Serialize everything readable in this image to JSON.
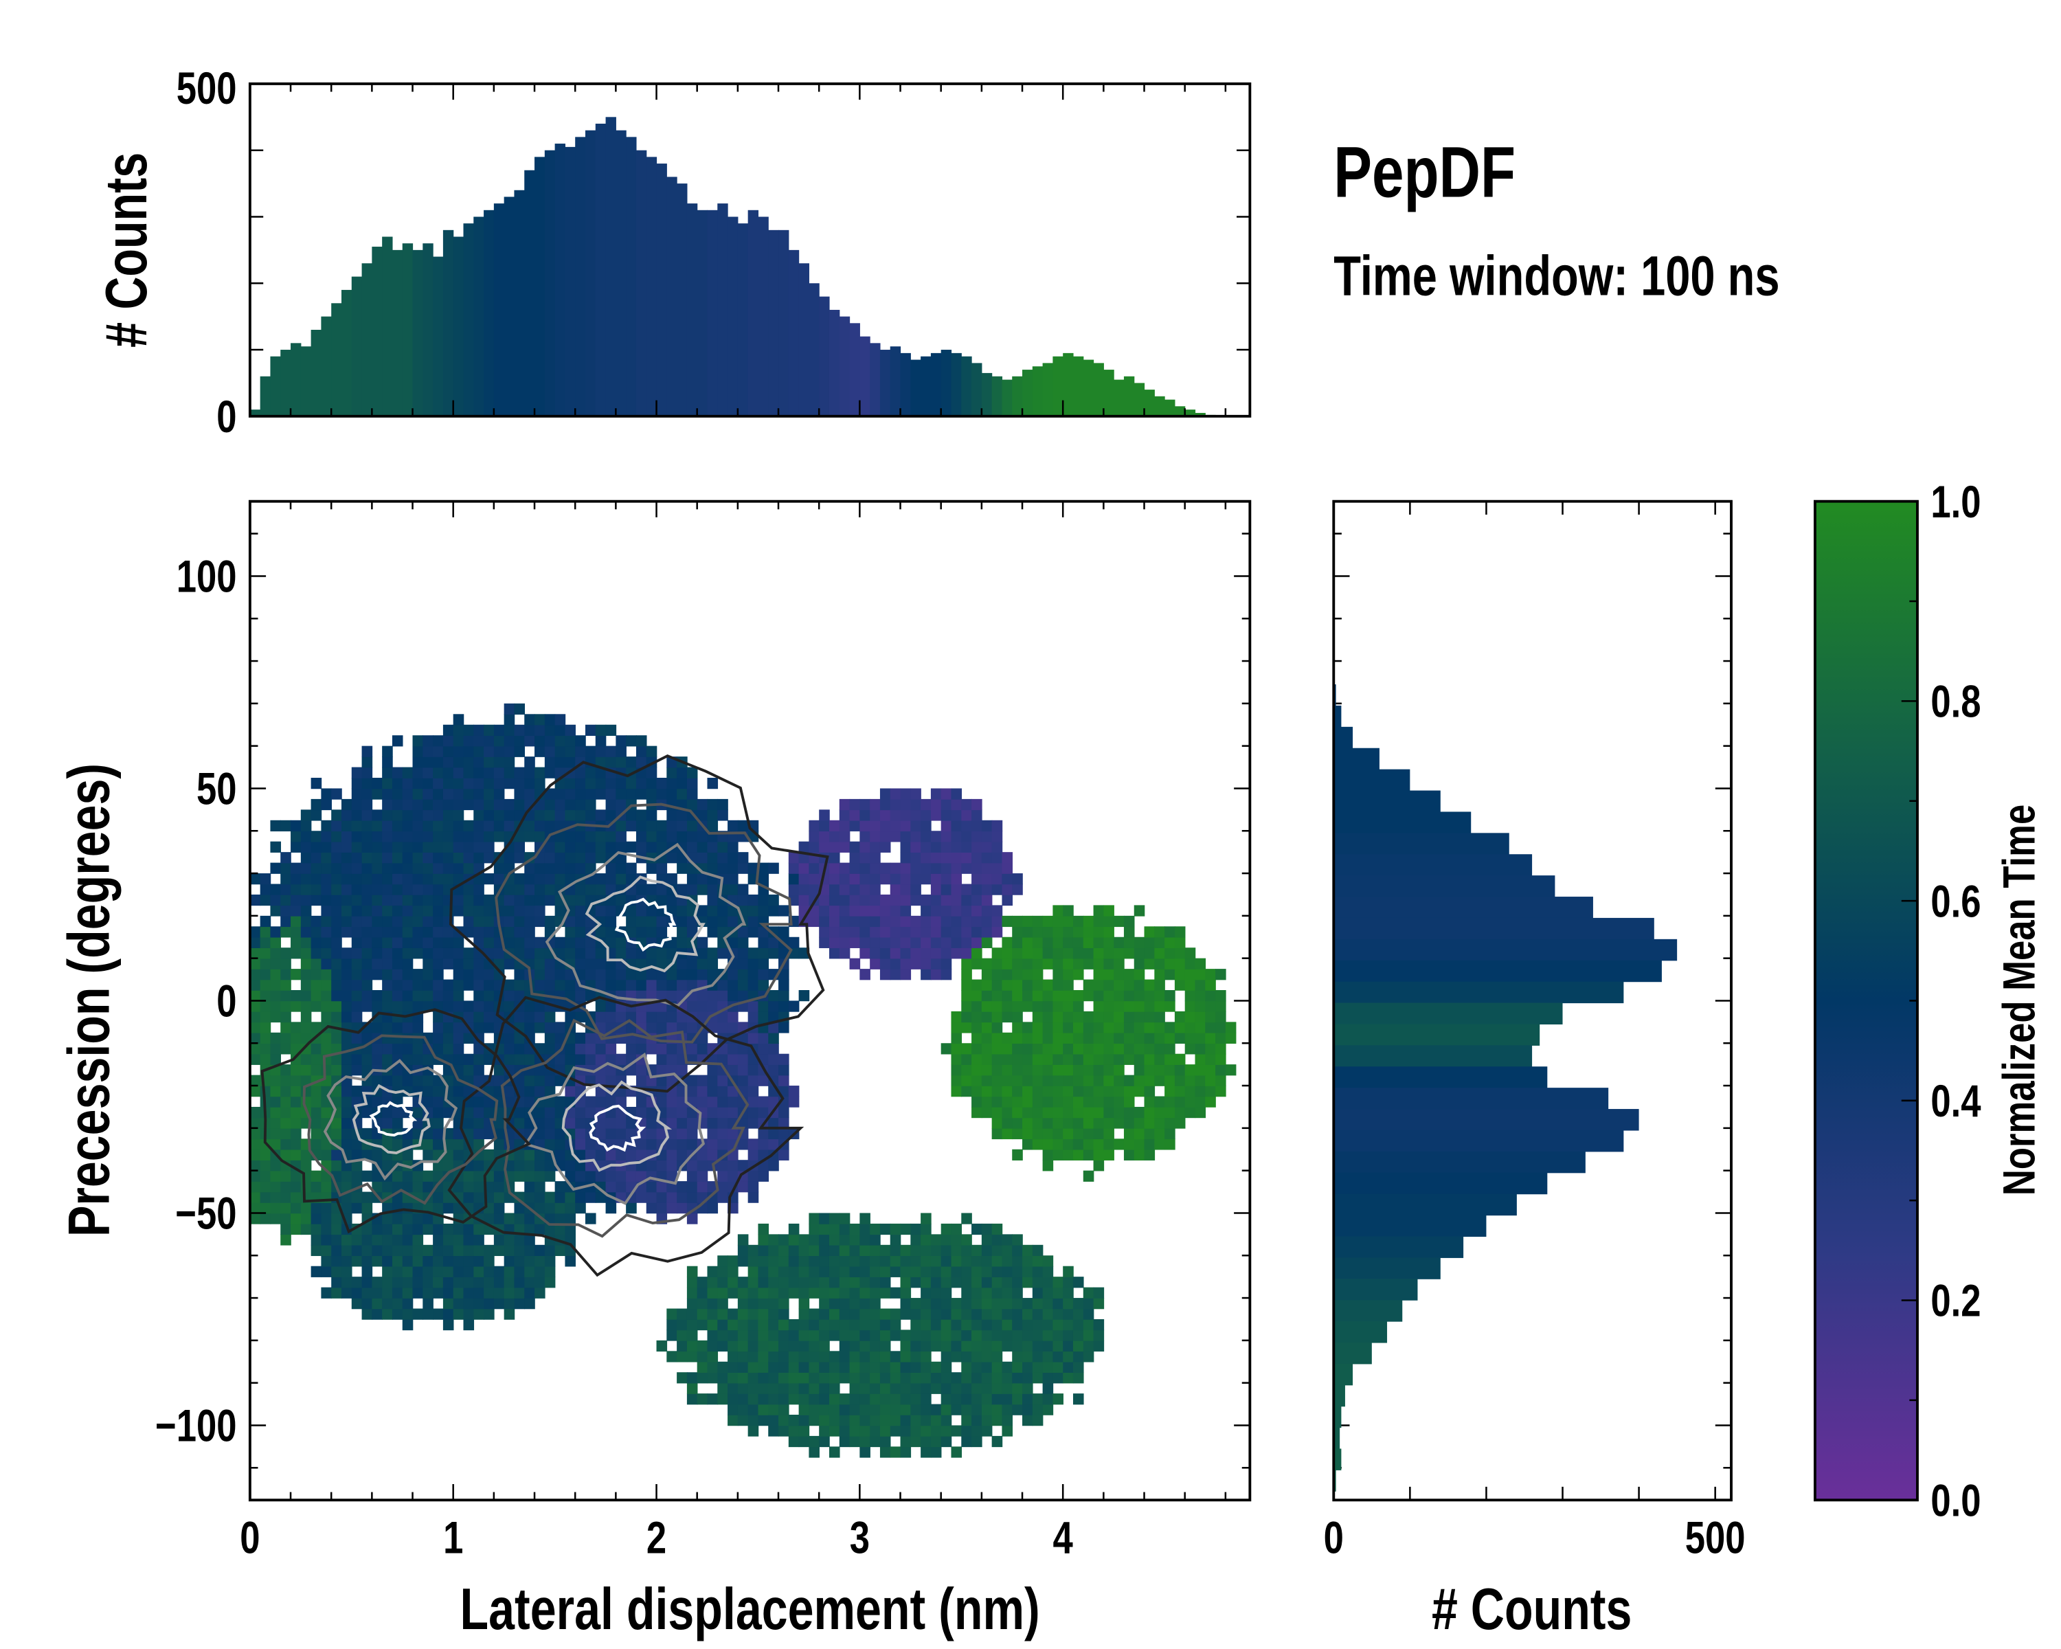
{
  "chart_data": [
    {
      "type": "bar",
      "name": "top-histogram",
      "ylabel": "# Counts",
      "xlim": [
        0,
        4.92
      ],
      "ylim": [
        0,
        500
      ],
      "yticks": [
        "0",
        "500"
      ],
      "bin_width": 0.05,
      "x": [
        0,
        0.05,
        0.1,
        0.15,
        0.2,
        0.25,
        0.3,
        0.35,
        0.4,
        0.45,
        0.5,
        0.55,
        0.6,
        0.65,
        0.7,
        0.75,
        0.8,
        0.85,
        0.9,
        0.95,
        1.0,
        1.05,
        1.1,
        1.15,
        1.2,
        1.25,
        1.3,
        1.35,
        1.4,
        1.45,
        1.5,
        1.55,
        1.6,
        1.65,
        1.7,
        1.75,
        1.8,
        1.85,
        1.9,
        1.95,
        2.0,
        2.05,
        2.1,
        2.15,
        2.2,
        2.25,
        2.3,
        2.35,
        2.4,
        2.45,
        2.5,
        2.55,
        2.6,
        2.65,
        2.7,
        2.75,
        2.8,
        2.85,
        2.9,
        2.95,
        3.0,
        3.05,
        3.1,
        3.15,
        3.2,
        3.25,
        3.3,
        3.35,
        3.4,
        3.45,
        3.5,
        3.55,
        3.6,
        3.65,
        3.7,
        3.75,
        3.8,
        3.85,
        3.9,
        3.95,
        4.0,
        4.05,
        4.1,
        4.15,
        4.2,
        4.25,
        4.3,
        4.35,
        4.4,
        4.45,
        4.5,
        4.55,
        4.6,
        4.65,
        4.7
      ],
      "values": [
        10,
        60,
        90,
        100,
        110,
        105,
        130,
        150,
        170,
        190,
        210,
        230,
        255,
        270,
        250,
        260,
        250,
        260,
        240,
        280,
        270,
        290,
        300,
        310,
        320,
        330,
        340,
        370,
        390,
        400,
        410,
        405,
        420,
        430,
        440,
        450,
        430,
        420,
        400,
        390,
        380,
        360,
        350,
        320,
        310,
        310,
        320,
        300,
        290,
        310,
        300,
        280,
        280,
        250,
        230,
        200,
        180,
        160,
        150,
        140,
        120,
        110,
        100,
        105,
        95,
        85,
        90,
        95,
        100,
        95,
        90,
        80,
        65,
        60,
        55,
        60,
        70,
        75,
        80,
        90,
        95,
        90,
        85,
        80,
        70,
        55,
        60,
        50,
        40,
        30,
        25,
        15,
        10,
        5,
        2
      ],
      "color_values": [
        0.72,
        0.72,
        0.72,
        0.72,
        0.72,
        0.72,
        0.72,
        0.72,
        0.72,
        0.72,
        0.7,
        0.7,
        0.7,
        0.7,
        0.7,
        0.7,
        0.66,
        0.64,
        0.62,
        0.6,
        0.58,
        0.56,
        0.54,
        0.52,
        0.5,
        0.5,
        0.5,
        0.5,
        0.5,
        0.48,
        0.46,
        0.45,
        0.45,
        0.44,
        0.42,
        0.42,
        0.42,
        0.42,
        0.4,
        0.4,
        0.4,
        0.4,
        0.4,
        0.4,
        0.4,
        0.38,
        0.38,
        0.38,
        0.38,
        0.36,
        0.36,
        0.36,
        0.36,
        0.35,
        0.35,
        0.35,
        0.33,
        0.3,
        0.28,
        0.26,
        0.25,
        0.3,
        0.38,
        0.42,
        0.46,
        0.5,
        0.5,
        0.5,
        0.52,
        0.56,
        0.62,
        0.66,
        0.7,
        0.78,
        0.85,
        0.9,
        0.92,
        0.94,
        0.95,
        0.96,
        0.96,
        0.96,
        0.96,
        0.96,
        0.96,
        0.96,
        0.96,
        0.96,
        0.96,
        0.96,
        0.96,
        0.96,
        0.96,
        0.96,
        0.96
      ]
    },
    {
      "type": "heatmap",
      "name": "main-2d-histogram",
      "xlabel": "Lateral displacement (nm)",
      "ylabel": "Precession (degrees)",
      "xlim": [
        0,
        4.92
      ],
      "ylim": [
        -117.6,
        117.6
      ],
      "xticks": [
        "0",
        "1",
        "2",
        "3",
        "4"
      ],
      "yticks": [
        "−100",
        "−50",
        "0",
        "50",
        "100"
      ],
      "regions": [
        {
          "cx": 4.1,
          "cy": -10,
          "rx": 0.75,
          "ry": 33,
          "t": 0.95
        },
        {
          "cx": 3.2,
          "cy": 27,
          "rx": 0.6,
          "ry": 24,
          "t": 0.22
        },
        {
          "cx": 2.1,
          "cy": -25,
          "rx": 0.6,
          "ry": 30,
          "t": 0.3
        },
        {
          "cx": 0.15,
          "cy": -20,
          "rx": 0.3,
          "ry": 40,
          "t": 0.8
        },
        {
          "cx": 3.1,
          "cy": -80,
          "rx": 1.15,
          "ry": 30,
          "t": 0.72
        },
        {
          "cx": 0.9,
          "cy": -55,
          "rx": 0.7,
          "ry": 25,
          "t": 0.62
        },
        {
          "cx": 1.3,
          "cy": 5,
          "rx": 1.45,
          "ry": 64,
          "t": 0.5
        }
      ],
      "density_peaks": [
        {
          "x": 1.95,
          "y": 18,
          "level": 1.0
        },
        {
          "x": 1.8,
          "y": -30,
          "level": 0.9
        },
        {
          "x": 0.7,
          "y": -28,
          "level": 0.7
        }
      ]
    },
    {
      "type": "bar",
      "orientation": "horizontal",
      "name": "right-histogram",
      "xlabel": "# Counts",
      "xlim": [
        0,
        521
      ],
      "xticks": [
        "0",
        "500"
      ],
      "bin_width": 5,
      "y": [
        72,
        67,
        62,
        57,
        52,
        47,
        42,
        37,
        32,
        27,
        22,
        17,
        12,
        7,
        2,
        -3,
        -8,
        -13,
        -18,
        -23,
        -28,
        -33,
        -38,
        -43,
        -48,
        -53,
        -58,
        -63,
        -68,
        -73,
        -78,
        -83,
        -88,
        -93,
        -98,
        -103,
        -108,
        -113
      ],
      "values": [
        3,
        10,
        25,
        60,
        100,
        140,
        180,
        230,
        260,
        290,
        340,
        420,
        450,
        430,
        380,
        300,
        270,
        260,
        280,
        360,
        400,
        380,
        330,
        280,
        240,
        200,
        170,
        140,
        110,
        90,
        70,
        50,
        25,
        15,
        10,
        8,
        10,
        3
      ],
      "color_values": [
        0.5,
        0.5,
        0.5,
        0.5,
        0.5,
        0.5,
        0.5,
        0.48,
        0.46,
        0.45,
        0.44,
        0.44,
        0.46,
        0.5,
        0.55,
        0.65,
        0.68,
        0.62,
        0.5,
        0.45,
        0.44,
        0.45,
        0.48,
        0.5,
        0.52,
        0.52,
        0.55,
        0.58,
        0.62,
        0.66,
        0.68,
        0.7,
        0.72,
        0.72,
        0.72,
        0.72,
        0.74,
        0.74
      ]
    },
    {
      "type": "colorbar",
      "name": "colorbar",
      "label": "Normalized Mean Time",
      "range": [
        0,
        1
      ],
      "ticks": [
        "0.0",
        "0.2",
        "0.4",
        "0.6",
        "0.8",
        "1.0"
      ],
      "colormap": [
        "#6a2f9a",
        "#2e3a85",
        "#023866",
        "#136148",
        "#228b22"
      ]
    }
  ],
  "title": "PepDF",
  "subtitle": "Time window: 100 ns"
}
